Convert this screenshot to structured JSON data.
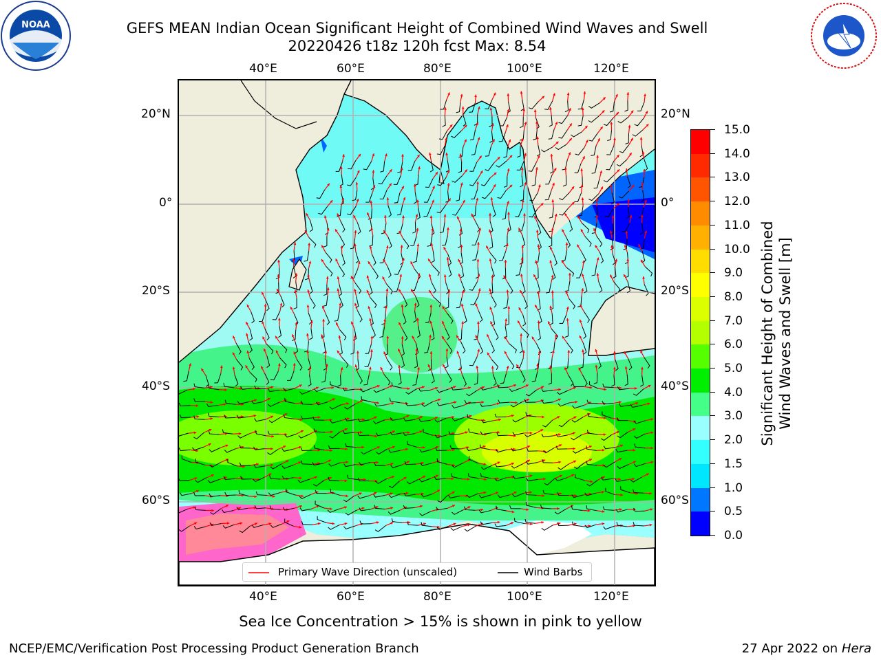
{
  "header": {
    "title_line1": "GEFS MEAN Indian Ocean Significant Height of Combined Wind Waves and Swell",
    "title_line2": "20220426 t18z 120h fcst   Max: 8.54"
  },
  "logos": {
    "noaa_text": "NOAA",
    "noaa_ring": "NATIONAL OCEANIC AND ATMOSPHERIC ADMINISTRATION · U.S. DEPARTMENT OF COMMERCE",
    "nws_ring": "NATIONAL WEATHER SERVICE"
  },
  "map": {
    "lon_labels": [
      "40°E",
      "60°E",
      "80°E",
      "100°E",
      "120°E"
    ],
    "lat_labels_left": [
      "20°N",
      "0°",
      "20°S",
      "40°S",
      "60°S"
    ],
    "lat_labels_right": [
      "20°N",
      "0°",
      "20°S",
      "40°S",
      "60°S"
    ],
    "lon_range": [
      20,
      130
    ],
    "lat_range": [
      28,
      -72
    ],
    "colors": {
      "land": "#efeedd",
      "grid": "#b0b0b0",
      "wave_arrow": "#ff0000",
      "wind_barb": "#000000"
    }
  },
  "legend": {
    "primary_wave_label": "Primary Wave Direction (unscaled)",
    "wind_barb_label": "Wind Barbs"
  },
  "colorbar": {
    "label_line1": "Significant Height of Combined",
    "label_line2": "Wind Waves and Swell [m]",
    "ticks": [
      "0.0",
      "0.5",
      "1.0",
      "1.5",
      "2.0",
      "3.0",
      "4.0",
      "5.0",
      "6.0",
      "7.0",
      "8.0",
      "9.0",
      "10.0",
      "11.0",
      "12.0",
      "13.0",
      "14.0",
      "15.0"
    ],
    "colors": [
      "#0000ff",
      "#0077ff",
      "#00e6ff",
      "#33ffff",
      "#99ffff",
      "#44ff88",
      "#00ee00",
      "#55ff00",
      "#b4ff00",
      "#dcff00",
      "#ffff00",
      "#ffdd00",
      "#ffb000",
      "#ff8c00",
      "#ff5500",
      "#ff2a00",
      "#ff0000"
    ]
  },
  "notes": {
    "sea_ice": "Sea Ice Concentration > 15% is shown in pink to yellow"
  },
  "footer": {
    "left": "NCEP/EMC/Verification Post Processing Product Generation Branch",
    "right_prefix": "27 Apr 2022 on ",
    "right_machine": "Hera"
  }
}
